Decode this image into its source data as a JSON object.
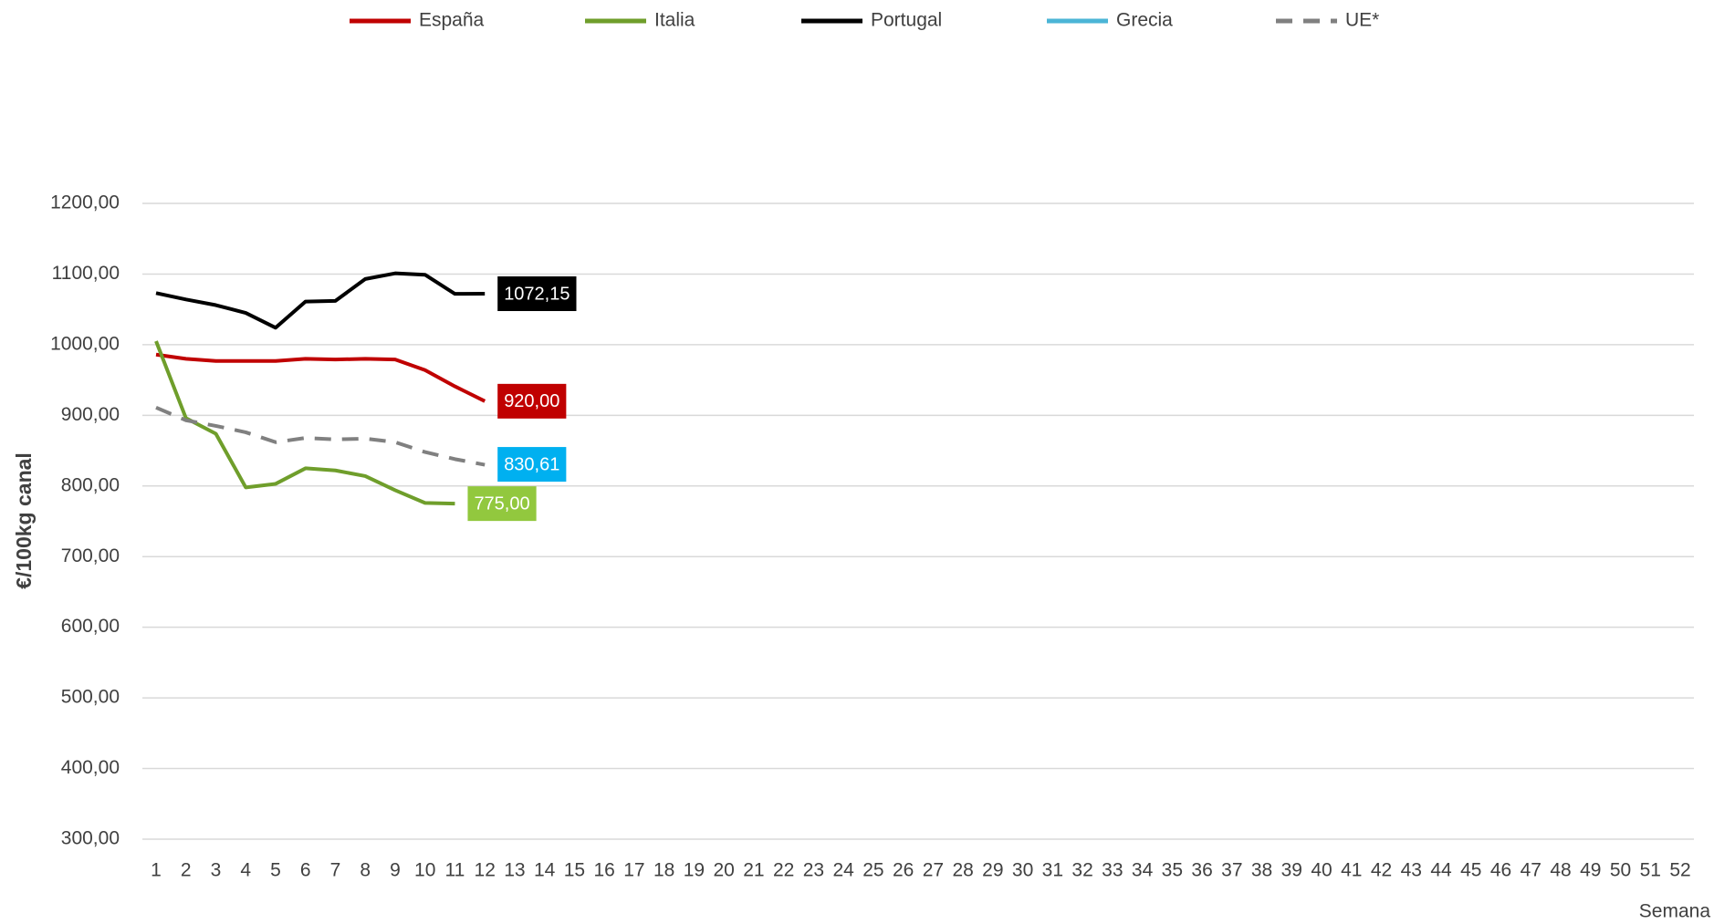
{
  "chart_data": {
    "type": "line",
    "x_label": "Semana",
    "y_label": "€/100kg canal",
    "x": [
      1,
      2,
      3,
      4,
      5,
      6,
      7,
      8,
      9,
      10,
      11,
      12,
      13,
      14,
      15,
      16,
      17,
      18,
      19,
      20,
      21,
      22,
      23,
      24,
      25,
      26,
      27,
      28,
      29,
      30,
      31,
      32,
      33,
      34,
      35,
      36,
      37,
      38,
      39,
      40,
      41,
      42,
      43,
      44,
      45,
      46,
      47,
      48,
      49,
      50,
      51,
      52
    ],
    "xlim": [
      1,
      52
    ],
    "ylim": [
      300,
      1200
    ],
    "yticks": [
      {
        "value": 300,
        "label": "300,00"
      },
      {
        "value": 400,
        "label": "400,00"
      },
      {
        "value": 500,
        "label": "500,00"
      },
      {
        "value": 600,
        "label": "600,00"
      },
      {
        "value": 700,
        "label": "700,00"
      },
      {
        "value": 800,
        "label": "800,00"
      },
      {
        "value": 900,
        "label": "900,00"
      },
      {
        "value": 1000,
        "label": "1000,00"
      },
      {
        "value": 1100,
        "label": "1100,00"
      },
      {
        "value": 1200,
        "label": "1200,00"
      }
    ],
    "grid": true,
    "legend": "top",
    "series": [
      {
        "name": "España",
        "color": "#c00000",
        "label_color": "#c00000",
        "values": [
          986,
          980,
          977,
          977,
          977,
          980,
          979,
          980,
          979,
          964,
          941,
          920,
          null,
          null,
          null,
          null,
          null,
          null,
          null,
          null,
          null,
          null,
          null,
          null,
          null,
          null,
          null,
          null,
          null,
          null,
          null,
          null,
          null,
          null,
          null,
          null,
          null,
          null,
          null,
          null,
          null,
          null,
          null,
          null,
          null,
          null,
          null,
          null,
          null,
          null,
          null,
          null
        ],
        "value_labels": [
          null,
          null,
          null,
          null,
          null,
          null,
          null,
          null,
          null,
          null,
          null,
          "920,00",
          null,
          null,
          null,
          null,
          null,
          null,
          null,
          null,
          null,
          null,
          null,
          null,
          null,
          null,
          null,
          null,
          null,
          null,
          null,
          null,
          null,
          null,
          null,
          null,
          null,
          null,
          null,
          null,
          null,
          null,
          null,
          null,
          null,
          null,
          null,
          null,
          null,
          null,
          null,
          null
        ]
      },
      {
        "name": "Italia",
        "color": "#6f9e2b",
        "label_color": "#92c83e",
        "values": [
          1005,
          896,
          874,
          798,
          803,
          825,
          822,
          814,
          794,
          776,
          775,
          null,
          null,
          null,
          null,
          null,
          null,
          null,
          null,
          null,
          null,
          null,
          null,
          null,
          null,
          null,
          null,
          null,
          null,
          null,
          null,
          null,
          null,
          null,
          null,
          null,
          null,
          null,
          null,
          null,
          null,
          null,
          null,
          null,
          null,
          null,
          null,
          null,
          null,
          null,
          null,
          null
        ],
        "value_labels": [
          null,
          null,
          null,
          null,
          null,
          null,
          null,
          null,
          null,
          null,
          "775,00",
          null,
          null,
          null,
          null,
          null,
          null,
          null,
          null,
          null,
          null,
          null,
          null,
          null,
          null,
          null,
          null,
          null,
          null,
          null,
          null,
          null,
          null,
          null,
          null,
          null,
          null,
          null,
          null,
          null,
          null,
          null,
          null,
          null,
          null,
          null,
          null,
          null,
          null,
          null,
          null,
          null
        ]
      },
      {
        "name": "Portugal",
        "color": "#000000",
        "label_color": "#000000",
        "values": [
          1073,
          1064,
          1056,
          1045,
          1024,
          1061,
          1062,
          1093,
          1101,
          1099,
          1072,
          1072.15,
          null,
          null,
          null,
          null,
          null,
          null,
          null,
          null,
          null,
          null,
          null,
          null,
          null,
          null,
          null,
          null,
          null,
          null,
          null,
          null,
          null,
          null,
          null,
          null,
          null,
          null,
          null,
          null,
          null,
          null,
          null,
          null,
          null,
          null,
          null,
          null,
          null,
          null,
          null,
          null
        ],
        "value_labels": [
          null,
          null,
          null,
          null,
          null,
          null,
          null,
          null,
          null,
          null,
          null,
          "1072,15",
          null,
          null,
          null,
          null,
          null,
          null,
          null,
          null,
          null,
          null,
          null,
          null,
          null,
          null,
          null,
          null,
          null,
          null,
          null,
          null,
          null,
          null,
          null,
          null,
          null,
          null,
          null,
          null,
          null,
          null,
          null,
          null,
          null,
          null,
          null,
          null,
          null,
          null,
          null,
          null
        ]
      },
      {
        "name": "Grecia",
        "color": "#4bb5d6",
        "label_color": "#00b0f0",
        "values": [
          null,
          null,
          null,
          null,
          null,
          null,
          null,
          null,
          null,
          null,
          null,
          830.61,
          null,
          null,
          null,
          null,
          null,
          null,
          null,
          null,
          null,
          null,
          null,
          null,
          null,
          null,
          null,
          null,
          null,
          null,
          null,
          null,
          null,
          null,
          null,
          null,
          null,
          null,
          null,
          null,
          null,
          null,
          null,
          null,
          null,
          null,
          null,
          null,
          null,
          null,
          null,
          null
        ],
        "value_labels": [
          null,
          null,
          null,
          null,
          null,
          null,
          null,
          null,
          null,
          null,
          null,
          "830,61",
          null,
          null,
          null,
          null,
          null,
          null,
          null,
          null,
          null,
          null,
          null,
          null,
          null,
          null,
          null,
          null,
          null,
          null,
          null,
          null,
          null,
          null,
          null,
          null,
          null,
          null,
          null,
          null,
          null,
          null,
          null,
          null,
          null,
          null,
          null,
          null,
          null,
          null,
          null,
          null
        ]
      },
      {
        "name": "UE*",
        "color": "#808080",
        "dashed": true,
        "values": [
          911,
          893,
          885,
          876,
          862,
          868,
          866,
          867,
          862,
          848,
          838,
          830,
          null,
          null,
          null,
          null,
          null,
          null,
          null,
          null,
          null,
          null,
          null,
          null,
          null,
          null,
          null,
          null,
          null,
          null,
          null,
          null,
          null,
          null,
          null,
          null,
          null,
          null,
          null,
          null,
          null,
          null,
          null,
          null,
          null,
          null,
          null,
          null,
          null,
          null,
          null,
          null
        ]
      }
    ]
  }
}
